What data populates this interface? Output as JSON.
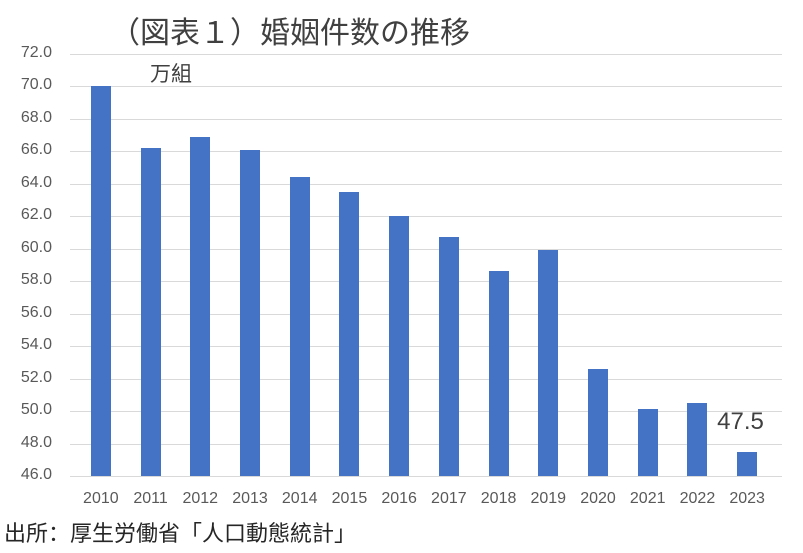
{
  "chart_data": {
    "type": "bar",
    "title": "（図表１）婚姻件数の推移",
    "unit_label": "万組",
    "xlabel": "",
    "ylabel": "万組",
    "ylim": [
      46.0,
      72.0
    ],
    "ytick_step": 2.0,
    "yticks": [
      "72.0",
      "70.0",
      "68.0",
      "66.0",
      "64.0",
      "62.0",
      "60.0",
      "58.0",
      "56.0",
      "54.0",
      "52.0",
      "50.0",
      "48.0",
      "46.0"
    ],
    "grid": true,
    "legend": null,
    "categories": [
      "2010",
      "2011",
      "2012",
      "2013",
      "2014",
      "2015",
      "2016",
      "2017",
      "2018",
      "2019",
      "2020",
      "2021",
      "2022",
      "2023"
    ],
    "values": [
      70.0,
      66.2,
      66.9,
      66.1,
      64.4,
      63.5,
      62.0,
      60.7,
      58.6,
      59.9,
      52.6,
      50.1,
      50.5,
      47.5
    ],
    "series_color": "#4472c4",
    "annotations": [
      {
        "category": "2023",
        "text": "47.5"
      }
    ],
    "source": "出所：厚生労働省「人口動態統計」"
  }
}
